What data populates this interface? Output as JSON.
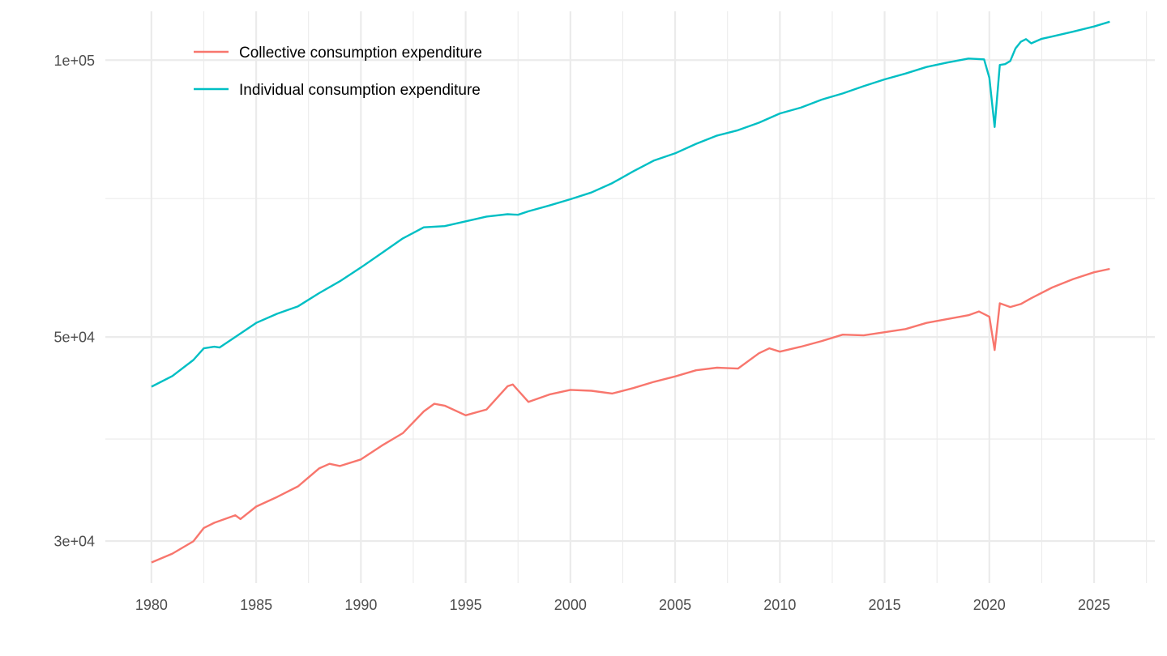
{
  "chart_data": {
    "type": "line",
    "title": "",
    "xlabel": "",
    "ylabel": "",
    "y_scale": "log10",
    "xlim": [
      1977.8,
      2027.9
    ],
    "ylim": [
      27000,
      113000
    ],
    "grid": true,
    "x_ticks": [
      1980,
      1985,
      1990,
      1995,
      2000,
      2005,
      2010,
      2015,
      2020,
      2025
    ],
    "x_tick_labels": [
      "1980",
      "1985",
      "1990",
      "1995",
      "2000",
      "2005",
      "2010",
      "2015",
      "2020",
      "2025"
    ],
    "y_ticks": [
      30000,
      50000,
      100000
    ],
    "y_tick_labels": [
      "3e+04",
      "5e+04",
      "1e+05"
    ],
    "y_minor_ticks": [
      38730,
      70710
    ],
    "legend_position": "top-left",
    "series": [
      {
        "name": "Collective consumption expenditure",
        "color": "#F8766D",
        "x": [
          1980,
          1981,
          1982,
          1982.5,
          1983,
          1984,
          1984.25,
          1985,
          1986,
          1987,
          1988,
          1988.5,
          1989,
          1990,
          1991,
          1992,
          1993,
          1993.5,
          1994,
          1995,
          1996,
          1997,
          1997.25,
          1998,
          1999,
          2000,
          2001,
          2002,
          2003,
          2004,
          2005,
          2006,
          2007,
          2008,
          2009,
          2009.5,
          2010,
          2011,
          2012,
          2013,
          2014,
          2015,
          2016,
          2017,
          2018,
          2019,
          2019.5,
          2020.0,
          2020.25,
          2020.5,
          2021,
          2021.5,
          2022,
          2023,
          2024,
          2025,
          2025.75
        ],
        "values": [
          28430,
          29070,
          29980,
          31000,
          31400,
          32000,
          31700,
          32700,
          33500,
          34400,
          35980,
          36400,
          36200,
          36800,
          38100,
          39300,
          41500,
          42300,
          42100,
          41100,
          41700,
          44200,
          44400,
          42500,
          43300,
          43800,
          43700,
          43400,
          44000,
          44700,
          45300,
          46000,
          46300,
          46200,
          48000,
          48600,
          48200,
          48800,
          49500,
          50300,
          50200,
          50600,
          51000,
          51800,
          52300,
          52800,
          53300,
          52600,
          48400,
          54400,
          53900,
          54300,
          55100,
          56600,
          57800,
          58800,
          59300
        ]
      },
      {
        "name": "Individual consumption expenditure",
        "color": "#00BFC4",
        "x": [
          1980,
          1981,
          1982,
          1982.5,
          1983,
          1983.25,
          1984,
          1985,
          1986,
          1987,
          1988,
          1989,
          1990,
          1991,
          1992,
          1993,
          1993.5,
          1994,
          1995,
          1996,
          1997,
          1997.5,
          1998,
          1999,
          2000,
          2001,
          2002,
          2003,
          2004,
          2005,
          2006,
          2007,
          2008,
          2009,
          2010,
          2011,
          2012,
          2013,
          2014,
          2015,
          2016,
          2017,
          2018,
          2019,
          2019.75,
          2020.0,
          2020.25,
          2020.5,
          2020.75,
          2021,
          2021.25,
          2021.5,
          2021.75,
          2022,
          2022.5,
          2023,
          2024,
          2025,
          2025.75
        ],
        "values": [
          44150,
          45350,
          47200,
          48600,
          48800,
          48700,
          50000,
          51800,
          53000,
          54000,
          55800,
          57500,
          59500,
          61700,
          64000,
          65800,
          65900,
          66000,
          66800,
          67600,
          68000,
          67900,
          68500,
          69500,
          70600,
          71800,
          73500,
          75700,
          77800,
          79200,
          81100,
          82800,
          83900,
          85500,
          87500,
          88800,
          90600,
          92000,
          93700,
          95300,
          96700,
          98300,
          99400,
          100400,
          100200,
          95700,
          84600,
          98800,
          99000,
          99800,
          103000,
          104700,
          105400,
          104300,
          105500,
          106100,
          107400,
          108800,
          110100
        ]
      }
    ]
  }
}
